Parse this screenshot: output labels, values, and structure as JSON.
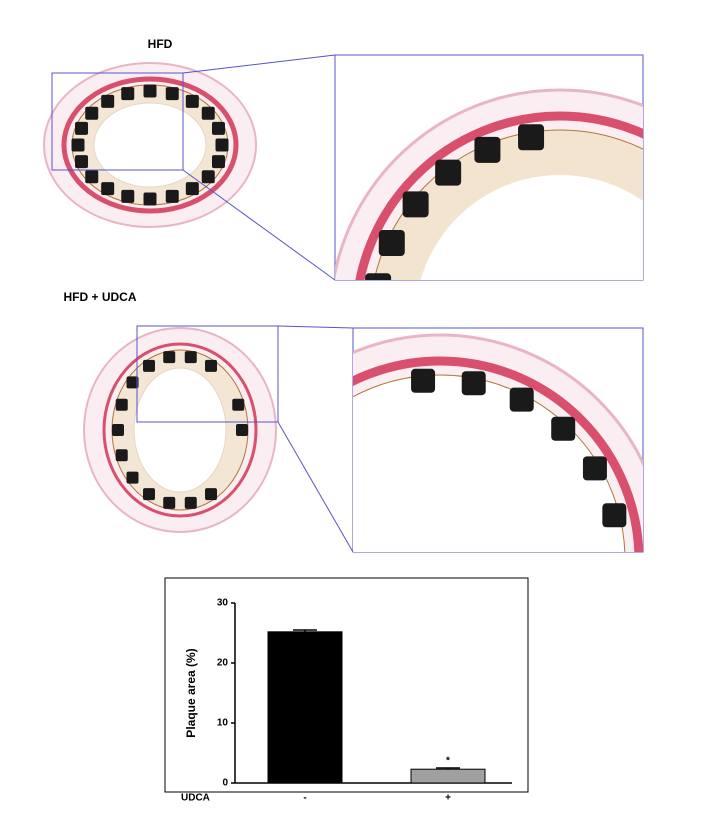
{
  "panels": [
    {
      "label": "HFD"
    },
    {
      "label": "HFD + UDCA"
    }
  ],
  "chart_data": {
    "type": "bar",
    "ylabel": "Plaque area (%)",
    "xlabel": "UDCA",
    "categories": [
      "-",
      "+"
    ],
    "series": [
      {
        "name": "Plaque area",
        "values": [
          25.2,
          2.3
        ],
        "errors": [
          0.3,
          0.2
        ],
        "colors": [
          "#000000",
          "#a0a0a0"
        ]
      }
    ],
    "annotations": [
      {
        "category": 1,
        "text": "*"
      }
    ],
    "ylim": [
      0,
      30
    ],
    "yticks": [
      0,
      10,
      20,
      30
    ]
  }
}
